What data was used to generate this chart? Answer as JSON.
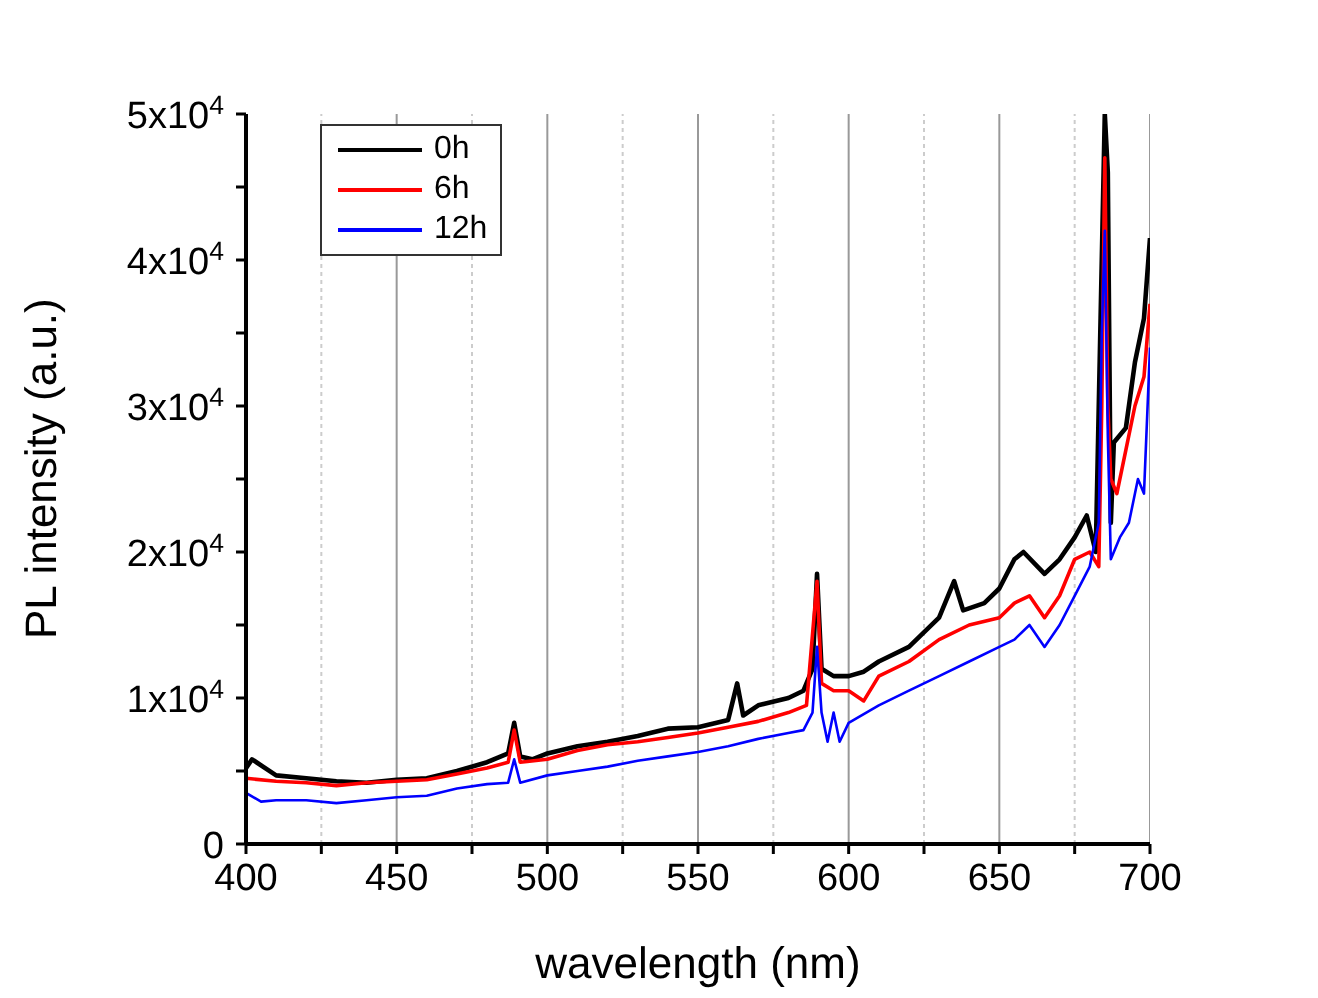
{
  "chart_data": {
    "type": "line",
    "xlabel": "wavelength (nm)",
    "ylabel": "PL intensity (a.u.)",
    "xlim": [
      400,
      700
    ],
    "ylim": [
      0,
      50000
    ],
    "xticks": [
      400,
      {
        "value": 425,
        "label": null
      },
      450,
      {
        "value": 475,
        "label": null
      },
      500,
      {
        "value": 525,
        "label": null
      },
      550,
      {
        "value": 575,
        "label": null
      },
      600,
      {
        "value": 625,
        "label": null
      },
      650,
      {
        "value": 675,
        "label": null
      },
      700
    ],
    "yticks": [
      {
        "value": 0,
        "label": "0"
      },
      {
        "value": 5000,
        "label": null
      },
      {
        "value": 10000,
        "label": "1x10$^{4}$"
      },
      {
        "value": 15000,
        "label": null
      },
      {
        "value": 20000,
        "label": "2x10$^{4}$"
      },
      {
        "value": 25000,
        "label": null
      },
      {
        "value": 30000,
        "label": "3x10$^{4}$"
      },
      {
        "value": 35000,
        "label": null
      },
      {
        "value": 40000,
        "label": "4x10$^{4}$"
      },
      {
        "value": 45000,
        "label": null
      },
      {
        "value": 50000,
        "label": "5x10$^{4}$"
      }
    ],
    "grid": "x",
    "legend": "top left",
    "marker": "none",
    "line_style": "solid",
    "series": [
      {
        "name": "0h",
        "color": "#000000",
        "x": [
          400,
          402,
          410,
          420,
          430,
          440,
          450,
          460,
          470,
          480,
          487,
          489,
          491,
          495,
          500,
          510,
          520,
          530,
          540,
          550,
          560,
          563,
          565,
          570,
          580,
          585,
          588,
          589.5,
          591,
          595,
          600,
          605,
          610,
          620,
          630,
          635,
          638,
          645,
          650,
          655,
          658,
          665,
          670,
          675,
          679,
          682,
          684,
          685,
          686,
          687,
          688,
          692,
          695,
          698,
          700
        ],
        "values": [
          5200,
          5800,
          4700,
          4500,
          4300,
          4200,
          4400,
          4500,
          5000,
          5600,
          6200,
          8300,
          6000,
          5800,
          6200,
          6700,
          7000,
          7400,
          7900,
          8000,
          8500,
          11000,
          8800,
          9500,
          10000,
          10500,
          12000,
          18500,
          12000,
          11500,
          11500,
          11800,
          12500,
          13500,
          15500,
          18000,
          16000,
          16500,
          17500,
          19500,
          20000,
          18500,
          19500,
          21000,
          22500,
          20000,
          40000,
          50000,
          46000,
          22000,
          27500,
          28500,
          33000,
          36000,
          41500
        ]
      },
      {
        "name": "6h",
        "color": "#ff0000",
        "x": [
          400,
          410,
          420,
          430,
          440,
          450,
          460,
          470,
          480,
          487,
          489,
          491,
          500,
          510,
          520,
          530,
          540,
          550,
          560,
          570,
          580,
          586,
          589.5,
          591,
          595,
          600,
          605,
          610,
          620,
          630,
          640,
          650,
          655,
          660,
          665,
          670,
          675,
          680,
          683,
          684,
          685,
          686,
          687,
          689,
          692,
          695,
          698,
          700
        ],
        "values": [
          4500,
          4300,
          4200,
          4000,
          4200,
          4300,
          4400,
          4800,
          5200,
          5600,
          7800,
          5600,
          5800,
          6400,
          6800,
          7000,
          7300,
          7600,
          8000,
          8400,
          9000,
          9500,
          18000,
          11000,
          10500,
          10500,
          9800,
          11500,
          12500,
          14000,
          15000,
          15500,
          16500,
          17000,
          15500,
          17000,
          19500,
          20000,
          19000,
          30000,
          47000,
          30000,
          25000,
          24000,
          27000,
          30000,
          32000,
          37000
        ]
      },
      {
        "name": "12h",
        "color": "#0000ff",
        "x": [
          400,
          405,
          410,
          420,
          430,
          440,
          450,
          460,
          470,
          480,
          487,
          489,
          491,
          500,
          510,
          520,
          530,
          540,
          550,
          560,
          570,
          580,
          585,
          588,
          589.5,
          591,
          593,
          595,
          597,
          600,
          610,
          620,
          630,
          640,
          650,
          655,
          660,
          665,
          670,
          675,
          680,
          683,
          684,
          685,
          686,
          687,
          690,
          693,
          696,
          698,
          700
        ],
        "values": [
          3500,
          2900,
          3000,
          3000,
          2800,
          3000,
          3200,
          3300,
          3800,
          4100,
          4200,
          5800,
          4200,
          4700,
          5000,
          5300,
          5700,
          6000,
          6300,
          6700,
          7200,
          7600,
          7800,
          9000,
          13500,
          9000,
          7000,
          9000,
          7000,
          8300,
          9500,
          10500,
          11500,
          12500,
          13500,
          14000,
          15000,
          13500,
          15000,
          17000,
          19000,
          22000,
          35000,
          42000,
          28000,
          19500,
          21000,
          22000,
          25000,
          24000,
          34000
        ]
      }
    ]
  }
}
